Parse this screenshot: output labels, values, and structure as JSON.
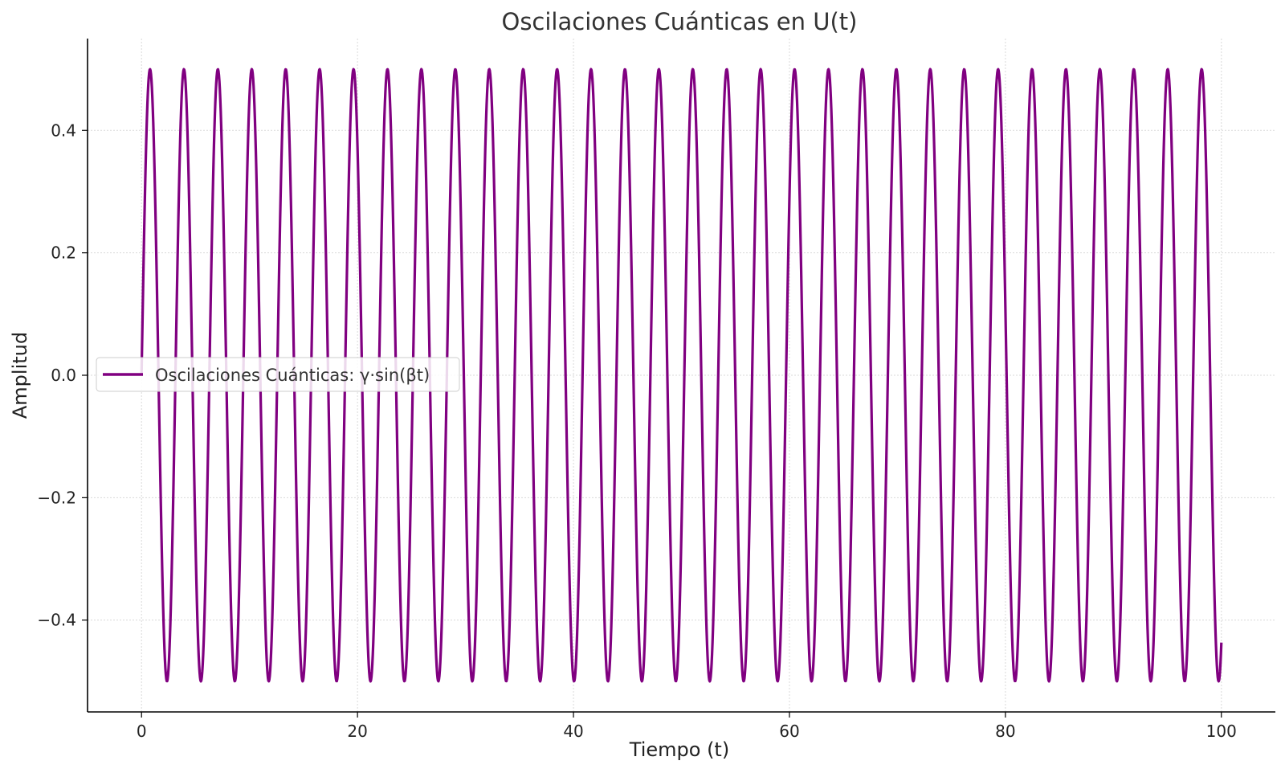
{
  "chart_data": {
    "type": "line",
    "title": "Oscilaciones Cuánticas en U(t)",
    "xlabel": "Tiempo (t)",
    "ylabel": "Amplitud",
    "xlim": [
      -5,
      105
    ],
    "ylim": [
      -0.55,
      0.55
    ],
    "x_ticks": [
      0,
      20,
      40,
      60,
      80,
      100
    ],
    "y_ticks": [
      -0.4,
      -0.2,
      0.0,
      0.2,
      0.4
    ],
    "x_tick_labels": [
      "0",
      "20",
      "40",
      "60",
      "80",
      "100"
    ],
    "y_tick_labels": [
      "−0.4",
      "−0.2",
      "0.0",
      "0.2",
      "0.4"
    ],
    "grid": true,
    "legend_position": "center-left",
    "series": [
      {
        "name": "Oscilaciones Cuánticas: γ·sin(βt)",
        "color": "#800080",
        "function": "sine",
        "amplitude": 0.5,
        "angular_frequency": 2.0,
        "x_range": [
          0,
          100
        ]
      }
    ]
  }
}
